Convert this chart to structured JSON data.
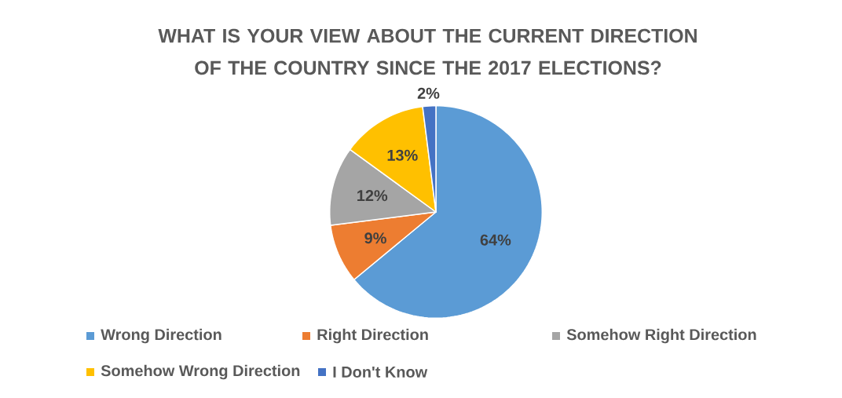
{
  "chart_data": {
    "type": "pie",
    "title": "WHAT IS YOUR VIEW ABOUT THE CURRENT DIRECTION OF THE COUNTRY SINCE THE 2017 ELECTIONS?",
    "categories": [
      "Wrong Direction",
      "Right Direction",
      "Somehow Right Direction",
      "Somehow Wrong Direction",
      "I Don't Know"
    ],
    "values": [
      64,
      9,
      12,
      13,
      2
    ],
    "value_labels": [
      "64%",
      "9%",
      "12%",
      "13%",
      "2%"
    ],
    "colors": [
      "#5b9bd5",
      "#ed7d31",
      "#a5a5a5",
      "#ffc000",
      "#4472c4"
    ],
    "legend": "bottom"
  }
}
